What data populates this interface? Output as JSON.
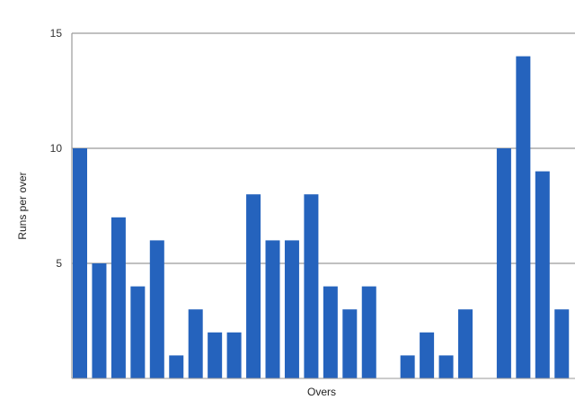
{
  "chart_data": {
    "type": "bar",
    "title": "",
    "xlabel": "Overs",
    "ylabel": "Runs per over",
    "ylim": [
      0,
      15
    ],
    "yticks": [
      5,
      10,
      15
    ],
    "grid": true,
    "legend": "none",
    "bar_color": "#2563bd",
    "grid_color": "#9a9a9a",
    "values": [
      10,
      5,
      7,
      4,
      6,
      1,
      3,
      2,
      2,
      8,
      6,
      6,
      8,
      4,
      3,
      4,
      0,
      1,
      2,
      1,
      3,
      0,
      10,
      14,
      9,
      3
    ]
  }
}
